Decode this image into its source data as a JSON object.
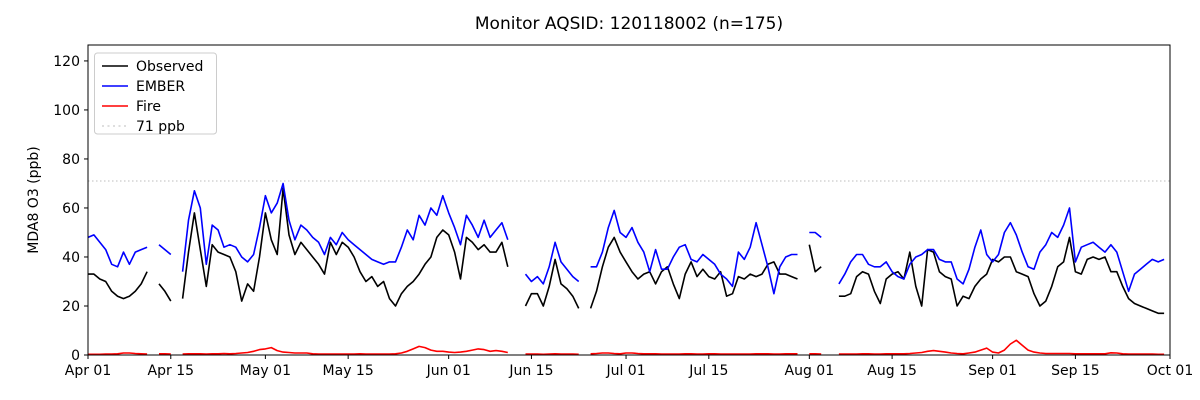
{
  "title": "Monitor AQSID: 120118002 (n=175)",
  "chart_data": {
    "type": "line",
    "title": "Monitor AQSID: 120118002 (n=175)",
    "xlabel": "",
    "ylabel": "MDA8 O3 (ppb)",
    "ylim": [
      0,
      126.5
    ],
    "yticks": [
      0,
      20,
      40,
      60,
      80,
      100,
      120
    ],
    "n_days": 183,
    "x_start": "Apr 01",
    "x_end": "Oct 01",
    "grid": false,
    "legend_position": "upper-left",
    "xticks": [
      {
        "day": 0,
        "label": "Apr 01"
      },
      {
        "day": 14,
        "label": "Apr 15"
      },
      {
        "day": 30,
        "label": "May 01"
      },
      {
        "day": 44,
        "label": "May 15"
      },
      {
        "day": 61,
        "label": "Jun 01"
      },
      {
        "day": 75,
        "label": "Jun 15"
      },
      {
        "day": 91,
        "label": "Jul 01"
      },
      {
        "day": 105,
        "label": "Jul 15"
      },
      {
        "day": 122,
        "label": "Aug 01"
      },
      {
        "day": 136,
        "label": "Aug 15"
      },
      {
        "day": 153,
        "label": "Sep 01"
      },
      {
        "day": 167,
        "label": "Sep 15"
      },
      {
        "day": 183,
        "label": "Oct 01"
      }
    ],
    "reference_line": {
      "label": "71 ppb",
      "value": 71,
      "color": "#d3d3d3",
      "style": "dotted"
    },
    "series": [
      {
        "name": "Observed",
        "color": "#000000",
        "values": [
          33,
          33,
          31,
          30,
          26,
          24,
          23,
          24,
          26,
          29,
          34,
          null,
          29,
          26,
          22,
          null,
          23,
          42,
          58,
          43,
          28,
          45,
          42,
          41,
          40,
          34,
          22,
          29,
          26,
          40,
          58,
          47,
          41,
          68,
          49,
          41,
          46,
          43,
          40,
          37,
          33,
          46,
          41,
          46,
          44,
          40,
          34,
          30,
          32,
          28,
          30,
          23,
          20,
          25,
          28,
          30,
          33,
          37,
          40,
          48,
          51,
          49,
          42,
          31,
          48,
          46,
          43,
          45,
          42,
          42,
          46,
          36,
          null,
          null,
          20,
          25,
          25,
          20,
          28,
          39,
          29,
          27,
          24,
          19,
          null,
          19,
          26,
          36,
          44,
          48,
          42,
          38,
          34,
          31,
          33,
          34,
          29,
          34,
          36,
          29,
          23,
          33,
          38,
          32,
          35,
          32,
          31,
          34,
          24,
          25,
          32,
          31,
          33,
          32,
          33,
          37,
          38,
          33,
          33,
          32,
          31,
          null,
          45,
          34,
          36,
          null,
          null,
          24,
          24,
          25,
          32,
          34,
          33,
          26,
          21,
          31,
          33,
          34,
          31,
          42,
          28,
          20,
          43,
          42,
          34,
          32,
          31,
          20,
          24,
          23,
          28,
          31,
          33,
          39,
          38,
          40,
          40,
          34,
          33,
          32,
          25,
          20,
          22,
          28,
          36,
          38,
          48,
          34,
          33,
          39,
          40,
          39,
          40,
          34,
          34,
          28,
          23,
          21,
          20,
          19,
          18,
          17,
          17
        ]
      },
      {
        "name": "EMBER",
        "color": "#0000ff",
        "values": [
          48,
          49,
          46,
          43,
          37,
          36,
          42,
          37,
          42,
          43,
          44,
          null,
          45,
          43,
          41,
          null,
          34,
          55,
          67,
          60,
          37,
          53,
          51,
          44,
          45,
          44,
          40,
          38,
          41,
          52,
          65,
          58,
          62,
          70,
          55,
          47,
          53,
          51,
          48,
          46,
          41,
          48,
          45,
          50,
          47,
          45,
          43,
          41,
          39,
          38,
          37,
          38,
          38,
          44,
          51,
          47,
          57,
          53,
          60,
          57,
          65,
          58,
          52,
          45,
          57,
          53,
          48,
          55,
          48,
          51,
          54,
          47,
          null,
          null,
          33,
          30,
          32,
          29,
          36,
          46,
          38,
          35,
          32,
          30,
          null,
          36,
          36,
          42,
          52,
          59,
          50,
          48,
          52,
          46,
          42,
          34,
          43,
          35,
          35,
          40,
          44,
          45,
          39,
          38,
          41,
          39,
          37,
          33,
          31,
          28,
          42,
          39,
          44,
          54,
          45,
          36,
          25,
          36,
          40,
          41,
          41,
          null,
          50,
          50,
          48,
          null,
          null,
          29,
          33,
          38,
          41,
          41,
          37,
          36,
          36,
          38,
          34,
          32,
          31,
          37,
          40,
          41,
          43,
          43,
          39,
          38,
          38,
          31,
          29,
          35,
          44,
          51,
          41,
          38,
          41,
          50,
          54,
          49,
          42,
          36,
          35,
          42,
          45,
          50,
          48,
          53,
          60,
          38,
          44,
          45,
          46,
          44,
          42,
          45,
          42,
          34,
          26,
          33,
          35,
          37,
          39,
          38,
          39
        ]
      },
      {
        "name": "Fire",
        "color": "#ff0000",
        "values": [
          0.3,
          0.3,
          0.3,
          0.4,
          0.4,
          0.5,
          0.8,
          0.8,
          0.6,
          0.5,
          0.4,
          null,
          0.5,
          0.5,
          0.4,
          null,
          0.4,
          0.5,
          0.5,
          0.5,
          0.4,
          0.5,
          0.5,
          0.6,
          0.5,
          0.6,
          0.8,
          1,
          1.5,
          2.2,
          2.5,
          3,
          1.8,
          1.2,
          1,
          0.8,
          0.8,
          0.8,
          0.5,
          0.4,
          0.4,
          0.4,
          0.4,
          0.4,
          0.4,
          0.4,
          0.5,
          0.4,
          0.4,
          0.4,
          0.4,
          0.4,
          0.5,
          0.8,
          1.5,
          2.5,
          3.5,
          3,
          2,
          1.5,
          1.5,
          1.2,
          1,
          1.2,
          1.5,
          2,
          2.5,
          2.2,
          1.5,
          1.8,
          1.5,
          1,
          null,
          null,
          0.4,
          0.4,
          0.4,
          0.3,
          0.4,
          0.5,
          0.4,
          0.4,
          0.4,
          0.3,
          null,
          0.5,
          0.6,
          0.8,
          0.8,
          0.6,
          0.5,
          0.8,
          0.8,
          0.6,
          0.5,
          0.5,
          0.5,
          0.4,
          0.4,
          0.4,
          0.4,
          0.5,
          0.5,
          0.4,
          0.4,
          0.5,
          0.5,
          0.4,
          0.4,
          0.4,
          0.4,
          0.4,
          0.4,
          0.5,
          0.5,
          0.5,
          0.4,
          0.4,
          0.5,
          0.5,
          0.5,
          null,
          0.5,
          0.5,
          0.4,
          null,
          null,
          0.4,
          0.4,
          0.4,
          0.4,
          0.5,
          0.5,
          0.4,
          0.4,
          0.5,
          0.5,
          0.5,
          0.5,
          0.6,
          0.8,
          1,
          1.5,
          1.8,
          1.5,
          1.2,
          0.8,
          0.6,
          0.5,
          0.8,
          1.2,
          2,
          2.8,
          1.2,
          0.8,
          2,
          4.5,
          6,
          4,
          2,
          1.2,
          0.8,
          0.6,
          0.6,
          0.6,
          0.6,
          0.6,
          0.5,
          0.5,
          0.5,
          0.5,
          0.5,
          0.5,
          0.9,
          0.8,
          0.5,
          0.4,
          0.4,
          0.4,
          0.4,
          0.4,
          0.3,
          0.3
        ]
      }
    ],
    "legend": [
      "Observed",
      "EMBER",
      "Fire",
      "71 ppb"
    ]
  }
}
